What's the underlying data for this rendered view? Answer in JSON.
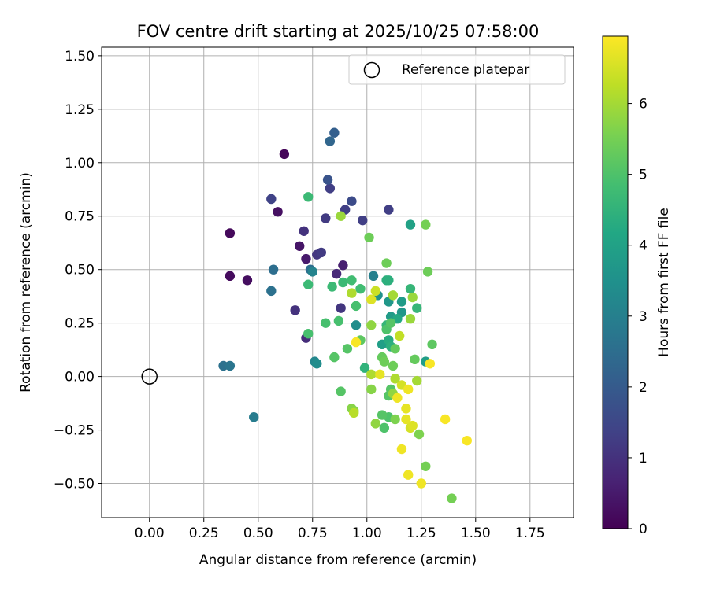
{
  "chart_data": {
    "type": "scatter",
    "title": "FOV centre drift starting at 2025/10/25 07:58:00",
    "xlabel": "Angular distance from reference (arcmin)",
    "ylabel": "Rotation from reference (arcmin)",
    "xlim": [
      -0.22,
      1.95
    ],
    "ylim": [
      -0.66,
      1.54
    ],
    "xticks": [
      0.0,
      0.25,
      0.5,
      0.75,
      1.0,
      1.25,
      1.5,
      1.75
    ],
    "xtick_labels": [
      "0.00",
      "0.25",
      "0.50",
      "0.75",
      "1.00",
      "1.25",
      "1.50",
      "1.75"
    ],
    "yticks": [
      -0.5,
      -0.25,
      0.0,
      0.25,
      0.5,
      0.75,
      1.0,
      1.25,
      1.5
    ],
    "ytick_labels": [
      "−0.50",
      "−0.25",
      "0.00",
      "0.25",
      "0.50",
      "0.75",
      "1.00",
      "1.25",
      "1.50"
    ],
    "grid": true,
    "legend": {
      "position": "top-right",
      "entries": [
        "Reference platepar"
      ]
    },
    "reference_point": {
      "x": 0.0,
      "y": 0.0,
      "label": "Reference platepar"
    },
    "colorbar": {
      "label": "Hours from first FF file",
      "colormap": "viridis",
      "range": [
        0,
        6.95
      ],
      "ticks": [
        0,
        1,
        2,
        3,
        4,
        5,
        6
      ],
      "tick_labels": [
        "0",
        "1",
        "2",
        "3",
        "4",
        "5",
        "6"
      ]
    },
    "points": [
      {
        "x": 0.62,
        "y": 1.04,
        "t": 0.1
      },
      {
        "x": 0.37,
        "y": 0.67,
        "t": 0.15
      },
      {
        "x": 0.37,
        "y": 0.47,
        "t": 0.2
      },
      {
        "x": 0.45,
        "y": 0.45,
        "t": 0.25
      },
      {
        "x": 0.59,
        "y": 0.77,
        "t": 0.3
      },
      {
        "x": 0.69,
        "y": 0.61,
        "t": 0.4
      },
      {
        "x": 0.72,
        "y": 0.55,
        "t": 0.5
      },
      {
        "x": 0.89,
        "y": 0.52,
        "t": 0.6
      },
      {
        "x": 0.86,
        "y": 0.48,
        "t": 0.8
      },
      {
        "x": 0.72,
        "y": 0.18,
        "t": 0.9
      },
      {
        "x": 0.67,
        "y": 0.31,
        "t": 1.0
      },
      {
        "x": 0.71,
        "y": 0.68,
        "t": 1.0
      },
      {
        "x": 0.77,
        "y": 0.57,
        "t": 1.1
      },
      {
        "x": 0.88,
        "y": 0.32,
        "t": 1.1
      },
      {
        "x": 0.79,
        "y": 0.58,
        "t": 1.2
      },
      {
        "x": 0.81,
        "y": 0.74,
        "t": 1.2
      },
      {
        "x": 0.83,
        "y": 0.88,
        "t": 1.3
      },
      {
        "x": 0.9,
        "y": 0.78,
        "t": 1.3
      },
      {
        "x": 0.98,
        "y": 0.73,
        "t": 1.3
      },
      {
        "x": 1.1,
        "y": 0.78,
        "t": 1.3
      },
      {
        "x": 0.56,
        "y": 0.83,
        "t": 1.4
      },
      {
        "x": 0.93,
        "y": 0.82,
        "t": 1.6
      },
      {
        "x": 0.82,
        "y": 0.92,
        "t": 1.8
      },
      {
        "x": 0.85,
        "y": 1.14,
        "t": 2.1
      },
      {
        "x": 0.83,
        "y": 1.1,
        "t": 2.3
      },
      {
        "x": 0.74,
        "y": 0.5,
        "t": 2.5
      },
      {
        "x": 0.57,
        "y": 0.5,
        "t": 2.5
      },
      {
        "x": 0.56,
        "y": 0.4,
        "t": 2.6
      },
      {
        "x": 0.34,
        "y": 0.05,
        "t": 2.6
      },
      {
        "x": 0.37,
        "y": 0.05,
        "t": 2.7
      },
      {
        "x": 0.48,
        "y": -0.19,
        "t": 2.9
      },
      {
        "x": 1.03,
        "y": 0.47,
        "t": 3.0
      },
      {
        "x": 0.75,
        "y": 0.49,
        "t": 3.1
      },
      {
        "x": 0.76,
        "y": 0.07,
        "t": 3.2
      },
      {
        "x": 0.77,
        "y": 0.06,
        "t": 3.4
      },
      {
        "x": 0.95,
        "y": 0.24,
        "t": 3.4
      },
      {
        "x": 1.05,
        "y": 0.38,
        "t": 3.5
      },
      {
        "x": 1.1,
        "y": 0.35,
        "t": 3.7
      },
      {
        "x": 1.16,
        "y": 0.3,
        "t": 3.7
      },
      {
        "x": 1.16,
        "y": 0.35,
        "t": 3.8
      },
      {
        "x": 1.11,
        "y": 0.28,
        "t": 3.8
      },
      {
        "x": 1.07,
        "y": 0.15,
        "t": 3.9
      },
      {
        "x": 1.27,
        "y": 0.07,
        "t": 3.9
      },
      {
        "x": 1.2,
        "y": 0.71,
        "t": 4.0
      },
      {
        "x": 1.14,
        "y": 0.27,
        "t": 4.2
      },
      {
        "x": 1.1,
        "y": 0.17,
        "t": 4.3
      },
      {
        "x": 1.09,
        "y": 0.45,
        "t": 4.4
      },
      {
        "x": 1.1,
        "y": 0.45,
        "t": 4.4
      },
      {
        "x": 1.11,
        "y": 0.14,
        "t": 4.4
      },
      {
        "x": 0.99,
        "y": 0.04,
        "t": 4.5
      },
      {
        "x": 1.23,
        "y": 0.32,
        "t": 4.6
      },
      {
        "x": 1.2,
        "y": 0.41,
        "t": 4.6
      },
      {
        "x": 1.09,
        "y": 0.24,
        "t": 4.6
      },
      {
        "x": 0.73,
        "y": 0.84,
        "t": 4.7
      },
      {
        "x": 0.73,
        "y": 0.43,
        "t": 4.7
      },
      {
        "x": 0.84,
        "y": 0.42,
        "t": 4.7
      },
      {
        "x": 0.89,
        "y": 0.44,
        "t": 4.7
      },
      {
        "x": 0.93,
        "y": 0.45,
        "t": 4.8
      },
      {
        "x": 0.97,
        "y": 0.41,
        "t": 4.8
      },
      {
        "x": 0.95,
        "y": 0.33,
        "t": 4.9
      },
      {
        "x": 0.81,
        "y": 0.25,
        "t": 4.9
      },
      {
        "x": 0.87,
        "y": 0.26,
        "t": 4.9
      },
      {
        "x": 0.73,
        "y": 0.2,
        "t": 4.9
      },
      {
        "x": 1.09,
        "y": 0.22,
        "t": 5.0
      },
      {
        "x": 1.08,
        "y": -0.24,
        "t": 5.0
      },
      {
        "x": 1.1,
        "y": -0.19,
        "t": 5.0
      },
      {
        "x": 1.07,
        "y": -0.18,
        "t": 5.1
      },
      {
        "x": 1.1,
        "y": -0.09,
        "t": 5.1
      },
      {
        "x": 1.11,
        "y": -0.06,
        "t": 5.1
      },
      {
        "x": 1.11,
        "y": 0.25,
        "t": 5.1
      },
      {
        "x": 0.85,
        "y": 0.09,
        "t": 5.1
      },
      {
        "x": 0.88,
        "y": -0.07,
        "t": 5.1
      },
      {
        "x": 0.91,
        "y": 0.13,
        "t": 5.1
      },
      {
        "x": 0.97,
        "y": 0.17,
        "t": 5.2
      },
      {
        "x": 1.3,
        "y": 0.15,
        "t": 5.2
      },
      {
        "x": 1.22,
        "y": 0.08,
        "t": 5.3
      },
      {
        "x": 1.13,
        "y": 0.13,
        "t": 5.3
      },
      {
        "x": 1.07,
        "y": 0.09,
        "t": 5.3
      },
      {
        "x": 1.08,
        "y": 0.07,
        "t": 5.4
      },
      {
        "x": 1.12,
        "y": 0.05,
        "t": 5.4
      },
      {
        "x": 1.01,
        "y": 0.65,
        "t": 5.4
      },
      {
        "x": 1.09,
        "y": 0.53,
        "t": 5.4
      },
      {
        "x": 1.28,
        "y": 0.49,
        "t": 5.4
      },
      {
        "x": 1.27,
        "y": 0.71,
        "t": 5.5
      },
      {
        "x": 1.27,
        "y": -0.42,
        "t": 5.5
      },
      {
        "x": 1.39,
        "y": -0.57,
        "t": 5.5
      },
      {
        "x": 1.13,
        "y": -0.2,
        "t": 5.6
      },
      {
        "x": 1.24,
        "y": -0.27,
        "t": 5.6
      },
      {
        "x": 0.94,
        "y": -0.16,
        "t": 5.7
      },
      {
        "x": 0.93,
        "y": -0.15,
        "t": 5.7
      },
      {
        "x": 1.02,
        "y": -0.06,
        "t": 5.7
      },
      {
        "x": 1.04,
        "y": -0.22,
        "t": 5.8
      },
      {
        "x": 1.12,
        "y": -0.08,
        "t": 5.8
      },
      {
        "x": 1.02,
        "y": 0.24,
        "t": 5.8
      },
      {
        "x": 1.21,
        "y": 0.37,
        "t": 5.9
      },
      {
        "x": 1.2,
        "y": 0.27,
        "t": 5.9
      },
      {
        "x": 0.88,
        "y": 0.75,
        "t": 5.9
      },
      {
        "x": 1.23,
        "y": -0.02,
        "t": 6.0
      },
      {
        "x": 1.12,
        "y": 0.38,
        "t": 6.0
      },
      {
        "x": 0.93,
        "y": 0.39,
        "t": 6.1
      },
      {
        "x": 1.13,
        "y": -0.01,
        "t": 6.1
      },
      {
        "x": 1.02,
        "y": 0.01,
        "t": 6.1
      },
      {
        "x": 0.94,
        "y": -0.17,
        "t": 6.2
      },
      {
        "x": 1.15,
        "y": 0.19,
        "t": 6.3
      },
      {
        "x": 1.04,
        "y": 0.4,
        "t": 6.4
      },
      {
        "x": 1.16,
        "y": -0.04,
        "t": 6.5
      },
      {
        "x": 1.2,
        "y": -0.24,
        "t": 6.5
      },
      {
        "x": 1.21,
        "y": -0.23,
        "t": 6.6
      },
      {
        "x": 1.02,
        "y": 0.36,
        "t": 6.6
      },
      {
        "x": 1.06,
        "y": 0.01,
        "t": 6.7
      },
      {
        "x": 1.18,
        "y": -0.15,
        "t": 6.7
      },
      {
        "x": 1.18,
        "y": -0.2,
        "t": 6.7
      },
      {
        "x": 1.16,
        "y": -0.34,
        "t": 6.8
      },
      {
        "x": 1.19,
        "y": -0.46,
        "t": 6.8
      },
      {
        "x": 1.25,
        "y": -0.5,
        "t": 6.8
      },
      {
        "x": 1.14,
        "y": -0.1,
        "t": 6.8
      },
      {
        "x": 1.19,
        "y": -0.06,
        "t": 6.8
      },
      {
        "x": 1.29,
        "y": 0.06,
        "t": 6.9
      },
      {
        "x": 1.36,
        "y": -0.2,
        "t": 6.9
      },
      {
        "x": 1.46,
        "y": -0.3,
        "t": 6.9
      },
      {
        "x": 0.95,
        "y": 0.16,
        "t": 6.9
      }
    ]
  }
}
